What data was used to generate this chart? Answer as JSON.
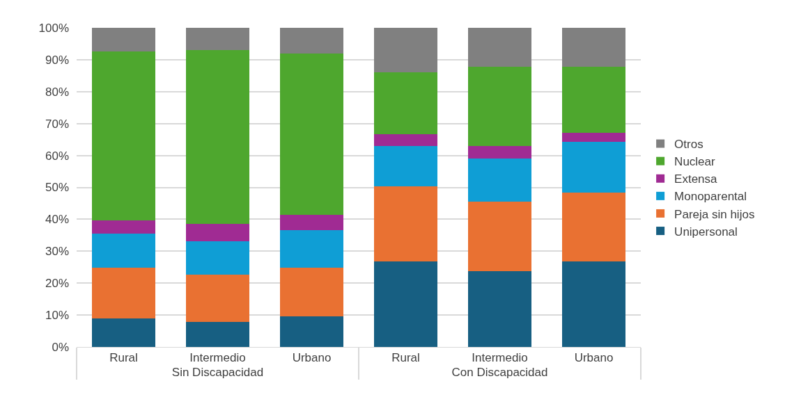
{
  "chart_data": {
    "type": "bar",
    "stacked": true,
    "categories": [
      "Rural",
      "Intermedio",
      "Urbano",
      "Rural",
      "Intermedio",
      "Urbano"
    ],
    "annotations": [
      "Sin Discapacidad",
      "Con Discapacidad"
    ],
    "series": [
      {
        "name": "Unipersonal",
        "color": "#175f82",
        "values": [
          9.0,
          7.9,
          9.5,
          26.7,
          23.7,
          26.7
        ]
      },
      {
        "name": "Pareja sin hijos",
        "color": "#e97132",
        "values": [
          15.9,
          14.7,
          15.4,
          23.6,
          21.8,
          21.7
        ]
      },
      {
        "name": "Monoparental",
        "color": "#0f9ed5",
        "values": [
          10.6,
          10.5,
          11.7,
          12.7,
          13.6,
          15.9
        ]
      },
      {
        "name": "Extensa",
        "color": "#a02b93",
        "values": [
          4.1,
          5.4,
          4.8,
          3.7,
          3.9,
          2.9
        ]
      },
      {
        "name": "Nuclear",
        "color": "#4ea72e",
        "values": [
          53.0,
          54.6,
          50.6,
          19.3,
          24.8,
          20.6
        ]
      },
      {
        "name": "Otros",
        "color": "#808080",
        "values": [
          7.4,
          6.9,
          8.0,
          14.0,
          12.2,
          12.2
        ]
      }
    ],
    "ylim": [
      0,
      100
    ],
    "yticks": [
      {
        "value": 0,
        "label": "0%"
      },
      {
        "value": 10,
        "label": "10%"
      },
      {
        "value": 20,
        "label": "20%"
      },
      {
        "value": 30,
        "label": "30%"
      },
      {
        "value": 40,
        "label": "40%"
      },
      {
        "value": 50,
        "label": "50%"
      },
      {
        "value": 60,
        "label": "60%"
      },
      {
        "value": 70,
        "label": "70%"
      },
      {
        "value": 80,
        "label": "80%"
      },
      {
        "value": 90,
        "label": "90%"
      },
      {
        "value": 100,
        "label": "100%"
      }
    ],
    "grid": "y",
    "legend": "right"
  }
}
